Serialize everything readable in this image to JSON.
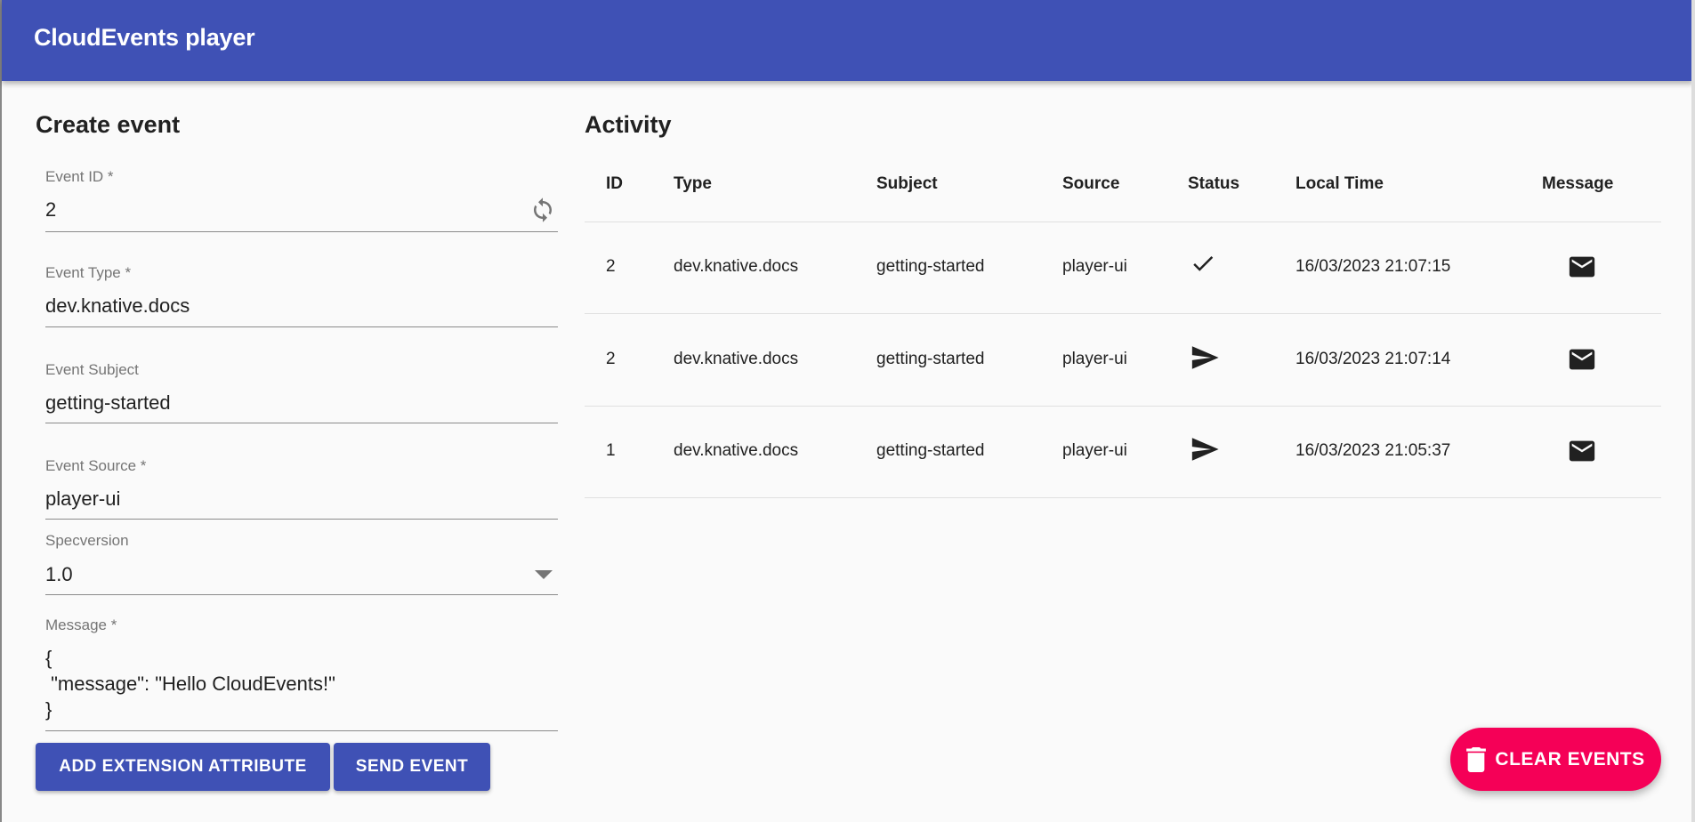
{
  "app": {
    "title": "CloudEvents player"
  },
  "form": {
    "heading": "Create event",
    "fields": [
      {
        "label": "Event ID *",
        "value": "2"
      },
      {
        "label": "Event Type *",
        "value": "dev.knative.docs"
      },
      {
        "label": "Event Subject",
        "value": "getting-started"
      },
      {
        "label": "Event Source *",
        "value": "player-ui"
      },
      {
        "label": "Specversion",
        "value": "1.0"
      }
    ],
    "message": {
      "label": "Message *",
      "lines": [
        "{",
        " \"message\": \"Hello CloudEvents!\"",
        "}"
      ]
    },
    "add_extension_label": "ADD EXTENSION ATTRIBUTE",
    "send_label": "SEND EVENT"
  },
  "activity": {
    "heading": "Activity",
    "columns": [
      "ID",
      "Type",
      "Subject",
      "Source",
      "Status",
      "Local Time",
      "Message"
    ],
    "rows": [
      {
        "id": "2",
        "type": "dev.knative.docs",
        "subject": "getting-started",
        "source": "player-ui",
        "status": "check-icon",
        "time": "16/03/2023 21:07:15",
        "message": "mail-icon"
      },
      {
        "id": "2",
        "type": "dev.knative.docs",
        "subject": "getting-started",
        "source": "player-ui",
        "status": "send-icon",
        "time": "16/03/2023 21:07:14",
        "message": "mail-icon"
      },
      {
        "id": "1",
        "type": "dev.knative.docs",
        "subject": "getting-started",
        "source": "player-ui",
        "status": "send-icon",
        "time": "16/03/2023 21:05:37",
        "message": "mail-icon"
      }
    ]
  },
  "fab": {
    "label": "CLEAR EVENTS",
    "icon": "trash-icon"
  },
  "colors": {
    "primary": "#3f51b5",
    "accent": "#f50057"
  }
}
